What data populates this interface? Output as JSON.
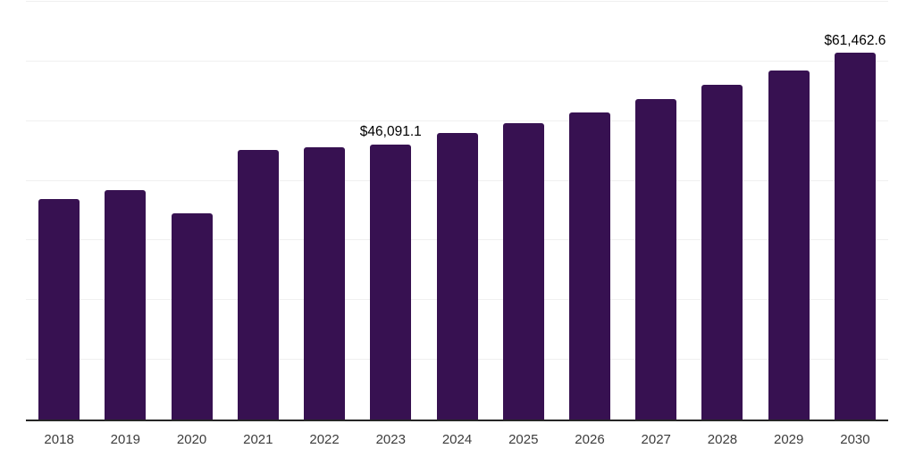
{
  "chart_data": {
    "type": "bar",
    "title": "",
    "xlabel": "",
    "ylabel": "",
    "categories": [
      "2018",
      "2019",
      "2020",
      "2021",
      "2022",
      "2023",
      "2024",
      "2025",
      "2026",
      "2027",
      "2028",
      "2029",
      "2030"
    ],
    "values": [
      37000,
      38500,
      34500,
      45100,
      45600,
      46091.1,
      48000,
      49700,
      51500,
      53700,
      56100,
      58500,
      61462.6
    ],
    "annotations": [
      {
        "category": "2023",
        "text": "$46,091.1"
      },
      {
        "category": "2030",
        "text": "$61,462.6"
      }
    ],
    "ylim": [
      0,
      70000
    ],
    "gridline_values": [
      10000,
      20000,
      30000,
      40000,
      50000,
      60000,
      70000
    ],
    "grid": "horizontal",
    "legend": "none",
    "bar_color": "#371151",
    "axis_line_color": "#262626",
    "gridline_color": "#f0f0f0",
    "tick_label_color": "#3d3d3d",
    "annotation_color": "#000000"
  }
}
